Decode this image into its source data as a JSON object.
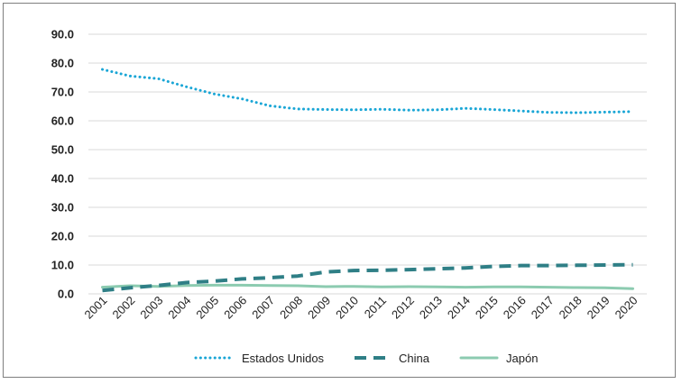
{
  "chart_data": {
    "type": "line",
    "title": "",
    "xlabel": "",
    "ylabel": "",
    "x": [
      "2001",
      "2002",
      "2003",
      "2004",
      "2005",
      "2006",
      "2007",
      "2008",
      "2009",
      "2010",
      "2011",
      "2012",
      "2013",
      "2014",
      "2015",
      "2016",
      "2017",
      "2018",
      "2019",
      "2020"
    ],
    "yticks": [
      "0.0",
      "10.0",
      "20.0",
      "30.0",
      "40.0",
      "50.0",
      "60.0",
      "70.0",
      "80.0",
      "90.0"
    ],
    "ylim": [
      0,
      90
    ],
    "grid": true,
    "legend_position": "bottom",
    "series": [
      {
        "name": "Estados Unidos",
        "color": "#1aa6d6",
        "style": "dotted",
        "values": [
          77.8,
          75.5,
          74.6,
          71.8,
          69.3,
          67.6,
          65.2,
          64.1,
          63.9,
          63.8,
          64.0,
          63.7,
          63.8,
          64.3,
          63.9,
          63.4,
          62.9,
          62.8,
          63.0,
          63.2
        ]
      },
      {
        "name": "China",
        "color": "#2f7f86",
        "style": "dashed",
        "values": [
          1.2,
          2.1,
          2.9,
          3.9,
          4.4,
          5.2,
          5.6,
          6.2,
          7.6,
          8.1,
          8.2,
          8.4,
          8.7,
          9.0,
          9.5,
          9.8,
          9.8,
          9.9,
          10.0,
          10.1
        ]
      },
      {
        "name": "Japón",
        "color": "#8ccbb0",
        "style": "solid",
        "values": [
          2.3,
          2.8,
          2.6,
          2.9,
          3.0,
          3.0,
          2.9,
          2.8,
          2.5,
          2.6,
          2.4,
          2.5,
          2.4,
          2.3,
          2.4,
          2.4,
          2.3,
          2.2,
          2.1,
          1.8
        ]
      }
    ]
  }
}
